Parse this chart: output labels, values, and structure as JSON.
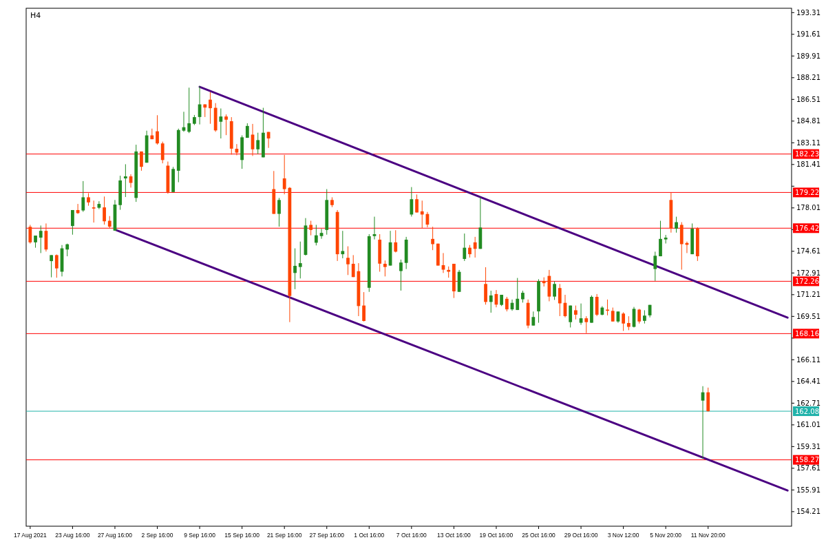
{
  "chart_data": {
    "type": "candlestick",
    "title": "H4",
    "categories": [
      "17 Aug 2021",
      null,
      null,
      null,
      null,
      null,
      null,
      null,
      "23 Aug 16:00",
      null,
      null,
      null,
      null,
      null,
      null,
      null,
      "27 Aug 16:00",
      null,
      null,
      null,
      null,
      null,
      null,
      null,
      "2 Sep 16:00",
      null,
      null,
      null,
      null,
      null,
      null,
      null,
      "9 Sep 16:00",
      null,
      null,
      null,
      null,
      null,
      null,
      null,
      "15 Sep 16:00",
      null,
      null,
      null,
      null,
      null,
      null,
      null,
      "21 Sep 16:00",
      null,
      null,
      null,
      null,
      null,
      null,
      null,
      "27 Sep 16:00",
      null,
      null,
      null,
      null,
      null,
      null,
      null,
      "1 Oct 16:00",
      null,
      null,
      null,
      null,
      null,
      null,
      null,
      "7 Oct 16:00",
      null,
      null,
      null,
      null,
      null,
      null,
      null,
      "13 Oct 16:00",
      null,
      null,
      null,
      null,
      null,
      null,
      null,
      "19 Oct 16:00",
      null,
      null,
      null,
      null,
      null,
      null,
      null,
      "25 Oct 16:00",
      null,
      null,
      null,
      null,
      null,
      null,
      null,
      "29 Oct 16:00",
      null,
      null,
      null,
      null,
      null,
      null,
      null,
      "3 Nov 12:00",
      null,
      null,
      null,
      null,
      null,
      null,
      null,
      "5 Nov 20:00",
      null,
      null,
      null,
      null,
      null,
      null,
      null,
      "11 Nov 20:00",
      null,
      null,
      null,
      null,
      null,
      null,
      null,
      null,
      null,
      null,
      null,
      null,
      null,
      null,
      null
    ],
    "colors": [
      "#ff4500",
      "#228b22",
      "#228b22",
      "#ff4500",
      "#228b22",
      "#ff4500",
      "#228b22",
      "#228b22",
      "#228b22",
      "#ff4500",
      "#228b22",
      "#ff4500",
      "#ff4500",
      "#228b22",
      "#ff4500",
      "#ff4500",
      "#228b22",
      "#228b22",
      "#228b22",
      "#ff4500",
      "#228b22",
      "#ff4500",
      "#228b22",
      "#ff4500",
      "#ff4500",
      "#ff4500",
      "#ff4500",
      "#228b22",
      "#228b22",
      "#228b22",
      "#228b22",
      "#228b22",
      "#228b22",
      "#ff4500",
      "#ff4500",
      "#ff4500",
      "#228b22",
      "#ff4500",
      "#ff4500",
      "#ff4500",
      "#228b22",
      "#228b22",
      "#ff4500",
      "#228b22",
      "#228b22",
      "#ff4500",
      "#ff4500",
      "#228b22",
      "#ff4500",
      "#ff4500",
      "#228b22",
      "#228b22",
      "#228b22",
      "#ff4500",
      "#228b22",
      "#228b22",
      "#228b22",
      "#ff4500",
      "#ff4500",
      "#228b22",
      "#ff4500",
      "#ff4500",
      "#ff4500",
      "#ff4500",
      "#228b22",
      "#228b22",
      "#ff4500",
      "#ff4500",
      "#228b22",
      "#ff4500",
      "#228b22",
      "#228b22",
      "#228b22",
      "#ff4500",
      "#ff4500",
      "#ff4500",
      "#ff4500",
      "#ff4500",
      "#ff4500",
      "#ff4500",
      "#ff4500",
      "#228b22",
      "#228b22",
      "#ff4500",
      "#ff4500",
      "#228b22",
      "#ff4500",
      "#228b22",
      "#ff4500",
      "#228b22",
      "#ff4500",
      "#228b22",
      "#228b22",
      "#228b22",
      "#ff4500",
      "#228b22",
      "#228b22",
      "#ff4500",
      "#ff4500",
      "#228b22",
      "#ff4500",
      "#ff4500",
      "#228b22",
      "#ff4500",
      "#228b22",
      "#ff4500",
      "#228b22",
      "#ff4500",
      "#228b22",
      "#ff4500",
      "#ff4500",
      "#228b22",
      "#ff4500",
      "#ff4500",
      "#228b22",
      "#ff4500",
      "#228b22",
      "#228b22",
      "#228b22",
      "#228b22",
      "#228b22",
      "#ff4500",
      "#228b22",
      "#ff4500",
      "#ff4500",
      "#228b22",
      "#ff4500",
      "#228b22",
      "#ff4500",
      null,
      null,
      null,
      null,
      null,
      null,
      null,
      null,
      null,
      null,
      null,
      null,
      null,
      null,
      null
    ],
    "ohlc": [
      [
        176.53,
        176.68,
        175.21,
        175.31
      ],
      [
        175.31,
        175.84,
        174.89,
        175.84
      ],
      [
        175.68,
        176.63,
        174.47,
        176.21
      ],
      [
        176.21,
        176.79,
        174.59,
        174.75
      ],
      [
        173.84,
        174.31,
        172.57,
        174.31
      ],
      [
        174.31,
        174.36,
        172.54,
        173.27
      ],
      [
        173.01,
        175.1,
        172.64,
        174.84
      ],
      [
        174.75,
        175.21,
        174.22,
        175.16
      ],
      [
        176.59,
        177.84,
        175.91,
        177.84
      ],
      [
        177.84,
        178.32,
        177.54,
        177.6
      ],
      [
        177.81,
        180.11,
        177.7,
        178.84
      ],
      [
        178.84,
        179.16,
        178.18,
        178.44
      ],
      [
        178.05,
        178.58,
        176.86,
        177.96
      ],
      [
        178.02,
        178.53,
        177.91,
        178.32
      ],
      [
        178.05,
        178.9,
        176.7,
        176.96
      ],
      [
        177.0,
        177.37,
        176.44,
        176.54
      ],
      [
        176.23,
        178.63,
        176.23,
        178.27
      ],
      [
        178.23,
        180.53,
        177.86,
        180.16
      ],
      [
        180.32,
        181.43,
        178.86,
        180.48
      ],
      [
        180.48,
        180.64,
        179.6,
        179.97
      ],
      [
        178.79,
        182.96,
        178.48,
        182.43
      ],
      [
        182.43,
        182.43,
        180.92,
        181.23
      ],
      [
        181.55,
        184.06,
        181.55,
        183.69
      ],
      [
        183.69,
        184.22,
        183.39,
        183.39
      ],
      [
        184.01,
        185.27,
        182.97,
        183.06
      ],
      [
        183.06,
        183.2,
        181.5,
        181.76
      ],
      [
        181.32,
        181.64,
        179.12,
        179.25
      ],
      [
        179.25,
        181.22,
        179.25,
        181.06
      ],
      [
        180.92,
        184.22,
        180.02,
        184.11
      ],
      [
        184.06,
        185.54,
        183.97,
        184.33
      ],
      [
        183.97,
        187.43,
        183.87,
        184.64
      ],
      [
        184.6,
        185.29,
        184.5,
        185.12
      ],
      [
        185.13,
        187.54,
        184.55,
        186.12
      ],
      [
        186.12,
        186.13,
        185.13,
        185.87
      ],
      [
        186.49,
        187.07,
        184.6,
        185.82
      ],
      [
        185.85,
        186.22,
        183.97,
        184.08
      ],
      [
        184.76,
        185.8,
        183.45,
        185.17
      ],
      [
        185.17,
        185.33,
        183.71,
        184.92
      ],
      [
        184.8,
        185.12,
        182.18,
        182.65
      ],
      [
        182.64,
        183.01,
        182.13,
        182.34
      ],
      [
        181.76,
        183.69,
        181.07,
        183.54
      ],
      [
        183.5,
        184.64,
        183.5,
        184.43
      ],
      [
        183.75,
        184.59,
        182.08,
        182.6
      ],
      [
        182.6,
        183.9,
        182.23,
        183.32
      ],
      [
        181.97,
        185.85,
        181.97,
        183.9
      ],
      [
        183.96,
        183.96,
        182.71,
        183.45
      ],
      [
        179.48,
        180.9,
        177.54,
        177.54
      ],
      [
        177.54,
        178.79,
        176.54,
        178.63
      ],
      [
        180.32,
        182.16,
        179.07,
        179.48
      ],
      [
        179.58,
        179.64,
        169.06,
        171.11
      ],
      [
        172.91,
        174.84,
        171.64,
        173.47
      ],
      [
        173.38,
        175.37,
        172.48,
        173.68
      ],
      [
        174.33,
        177.21,
        174.28,
        176.63
      ],
      [
        176.68,
        177.0,
        175.86,
        176.28
      ],
      [
        175.28,
        176.68,
        175.07,
        175.86
      ],
      [
        175.8,
        176.37,
        175.59,
        176.05
      ],
      [
        176.28,
        179.48,
        175.91,
        178.63
      ],
      [
        178.63,
        178.84,
        178.07,
        178.23
      ],
      [
        177.69,
        177.84,
        173.85,
        174.38
      ],
      [
        174.38,
        176.21,
        174.06,
        174.63
      ],
      [
        174.1,
        175.0,
        172.75,
        173.59
      ],
      [
        173.63,
        174.31,
        172.59,
        172.59
      ],
      [
        173.05,
        173.68,
        169.53,
        170.32
      ],
      [
        170.36,
        171.41,
        169.11,
        169.15
      ],
      [
        171.75,
        175.95,
        171.43,
        175.79
      ],
      [
        175.8,
        177.32,
        175.54,
        175.95
      ],
      [
        175.52,
        175.95,
        173.01,
        173.64
      ],
      [
        173.63,
        173.89,
        172.64,
        173.38
      ],
      [
        173.49,
        176.21,
        173.49,
        175.31
      ],
      [
        175.31,
        176.26,
        174.52,
        174.58
      ],
      [
        173.06,
        173.96,
        171.53,
        173.73
      ],
      [
        173.7,
        175.74,
        173.22,
        175.52
      ],
      [
        177.49,
        179.64,
        177.33,
        178.69
      ],
      [
        178.69,
        179.06,
        177.65,
        177.65
      ],
      [
        177.74,
        178.58,
        176.42,
        177.49
      ],
      [
        177.53,
        177.69,
        176.49,
        176.7
      ],
      [
        175.58,
        176.53,
        174.7,
        175.17
      ],
      [
        175.21,
        175.21,
        173.49,
        173.49
      ],
      [
        173.52,
        174.47,
        172.91,
        173.17
      ],
      [
        173.15,
        173.42,
        172.54,
        173.01
      ],
      [
        173.63,
        173.63,
        170.95,
        171.47
      ],
      [
        171.43,
        173.15,
        171.43,
        173.0
      ],
      [
        174.01,
        176.0,
        173.85,
        174.89
      ],
      [
        174.89,
        175.1,
        174.12,
        174.38
      ],
      [
        175.31,
        175.74,
        174.12,
        174.8
      ],
      [
        174.8,
        178.84,
        174.8,
        176.47
      ],
      [
        172.05,
        173.36,
        170.43,
        170.64
      ],
      [
        170.64,
        171.52,
        169.8,
        171.15
      ],
      [
        171.26,
        171.57,
        170.22,
        170.43
      ],
      [
        170.41,
        171.2,
        170.32,
        171.2
      ],
      [
        170.89,
        171.04,
        169.9,
        170.06
      ],
      [
        170.06,
        170.83,
        169.95,
        170.57
      ],
      [
        170.01,
        172.52,
        170.01,
        170.89
      ],
      [
        170.85,
        171.52,
        170.59,
        171.36
      ],
      [
        170.57,
        170.83,
        168.58,
        168.79
      ],
      [
        168.79,
        169.89,
        168.79,
        169.46
      ],
      [
        169.9,
        172.42,
        169.01,
        172.27
      ],
      [
        172.27,
        172.57,
        171.85,
        172.11
      ],
      [
        172.68,
        173.15,
        170.69,
        171.06
      ],
      [
        171.06,
        172.26,
        170.8,
        172.05
      ],
      [
        171.73,
        172.05,
        169.53,
        170.53
      ],
      [
        170.57,
        171.2,
        169.43,
        169.53
      ],
      [
        169.06,
        170.36,
        168.64,
        170.36
      ],
      [
        169.99,
        170.36,
        169.27,
        169.64
      ],
      [
        169.01,
        170.52,
        168.85,
        169.36
      ],
      [
        169.36,
        169.52,
        168.2,
        169.06
      ],
      [
        169.01,
        171.15,
        169.01,
        171.04
      ],
      [
        171.04,
        171.26,
        169.53,
        169.64
      ],
      [
        169.64,
        170.31,
        169.59,
        170.2
      ],
      [
        170.04,
        170.83,
        169.59,
        169.95
      ],
      [
        169.94,
        170.2,
        169.11,
        169.11
      ],
      [
        169.11,
        169.89,
        169.01,
        169.89
      ],
      [
        169.73,
        169.83,
        168.37,
        168.95
      ],
      [
        168.99,
        169.52,
        168.43,
        168.69
      ],
      [
        168.69,
        170.25,
        168.64,
        170.1
      ],
      [
        170.04,
        170.1,
        168.95,
        169.11
      ],
      [
        169.16,
        169.99,
        168.95,
        169.57
      ],
      [
        169.59,
        170.41,
        169.43,
        170.41
      ],
      [
        173.22,
        174.58,
        172.29,
        174.26
      ],
      [
        174.22,
        177.0,
        174.22,
        175.58
      ],
      [
        175.54,
        175.89,
        175.22,
        175.68
      ],
      [
        178.63,
        179.21,
        176.07,
        176.38
      ],
      [
        176.38,
        177.32,
        176.07,
        176.89
      ],
      [
        176.68,
        176.89,
        173.17,
        175.17
      ],
      [
        175.26,
        175.37,
        174.47,
        175.12
      ],
      [
        174.38,
        176.79,
        174.38,
        176.38
      ],
      [
        176.38,
        176.49,
        173.85,
        174.22
      ],
      [
        162.91,
        164.04,
        158.35,
        163.56
      ],
      [
        163.56,
        163.93,
        162.05,
        162.08
      ],
      null,
      null,
      null,
      null,
      null,
      null,
      null,
      null,
      null,
      null,
      null,
      null,
      null,
      null,
      null
    ],
    "series": [
      {
        "type": "line",
        "color": "#4b0082",
        "values": [
          null,
          null,
          null,
          null,
          null,
          null,
          null,
          null,
          null,
          null,
          null,
          null,
          null,
          null,
          null,
          null,
          null,
          null,
          null,
          null,
          null,
          null,
          null,
          null,
          null,
          null,
          null,
          null,
          null,
          null,
          null,
          null,
          187.49,
          null,
          null,
          null,
          null,
          null,
          null,
          null,
          null,
          null,
          null,
          null,
          null,
          null,
          null,
          null,
          null,
          null,
          null,
          null,
          null,
          null,
          null,
          null,
          null,
          null,
          null,
          null,
          null,
          null,
          null,
          null,
          null,
          null,
          null,
          null,
          null,
          null,
          null,
          null,
          null,
          null,
          null,
          null,
          null,
          null,
          null,
          null,
          null,
          null,
          null,
          null,
          null,
          null,
          null,
          null,
          null,
          null,
          null,
          null,
          null,
          null,
          null,
          null,
          null,
          null,
          null,
          null,
          null,
          null,
          null,
          null,
          null,
          null,
          null,
          null,
          null,
          null,
          null,
          null,
          null,
          null,
          null,
          null,
          null,
          null,
          null,
          null,
          null,
          null,
          null,
          null,
          null,
          null,
          null,
          null,
          null,
          null,
          null,
          null,
          null,
          null,
          null,
          null,
          null,
          null,
          null,
          null,
          null,
          null,
          null,
          169.41
        ]
      },
      {
        "type": "line",
        "color": "#4b0082",
        "values": [
          null,
          null,
          null,
          null,
          null,
          null,
          null,
          null,
          null,
          null,
          null,
          null,
          null,
          null,
          null,
          null,
          176.31,
          null,
          null,
          null,
          null,
          null,
          null,
          null,
          null,
          null,
          null,
          null,
          null,
          null,
          null,
          null,
          null,
          null,
          null,
          null,
          null,
          null,
          null,
          null,
          null,
          null,
          null,
          null,
          null,
          null,
          null,
          null,
          null,
          null,
          null,
          null,
          null,
          null,
          null,
          null,
          null,
          null,
          null,
          null,
          null,
          null,
          null,
          null,
          null,
          null,
          null,
          null,
          null,
          null,
          null,
          null,
          null,
          null,
          null,
          null,
          null,
          null,
          null,
          null,
          null,
          null,
          null,
          null,
          null,
          null,
          null,
          null,
          null,
          null,
          null,
          null,
          null,
          null,
          null,
          null,
          null,
          null,
          null,
          null,
          null,
          null,
          null,
          null,
          null,
          null,
          null,
          null,
          null,
          null,
          null,
          null,
          null,
          null,
          null,
          null,
          null,
          null,
          null,
          null,
          null,
          null,
          null,
          null,
          null,
          null,
          null,
          null,
          null,
          null,
          null,
          null,
          null,
          null,
          null,
          null,
          null,
          null,
          null,
          null,
          null,
          null,
          null,
          155.87
        ]
      }
    ],
    "ylim": [
      153.07,
      193.65
    ],
    "yticks": [
      154.21,
      155.91,
      157.61,
      159.31,
      161.01,
      162.71,
      164.41,
      166.11,
      {
        "value": 167.81,
        "label": null
      },
      169.51,
      171.21,
      172.91,
      174.61,
      {
        "value": 176.31,
        "label": null
      },
      178.01,
      {
        "value": 179.71,
        "label": null
      },
      181.41,
      183.11,
      184.81,
      186.51,
      188.21,
      189.91,
      191.61,
      193.31
    ],
    "ref_lines": [
      {
        "axis": "y",
        "value": 182.23,
        "label": "182.23",
        "color": "#ff0000"
      },
      {
        "axis": "y",
        "value": 179.22,
        "label": "179.22",
        "color": "#ff0000"
      },
      {
        "axis": "y",
        "value": 176.42,
        "label": "176.42",
        "color": "#ff0000"
      },
      {
        "axis": "y",
        "value": 172.26,
        "label": "172.26",
        "color": "#ff0000"
      },
      {
        "axis": "y",
        "value": 168.16,
        "label": "168.16",
        "color": "#ff0000"
      },
      {
        "axis": "y",
        "value": 162.08,
        "label": "162.08",
        "color": "#20b2aa"
      },
      {
        "axis": "y",
        "value": 158.27,
        "label": "158.27",
        "color": "#ff0000"
      }
    ]
  }
}
